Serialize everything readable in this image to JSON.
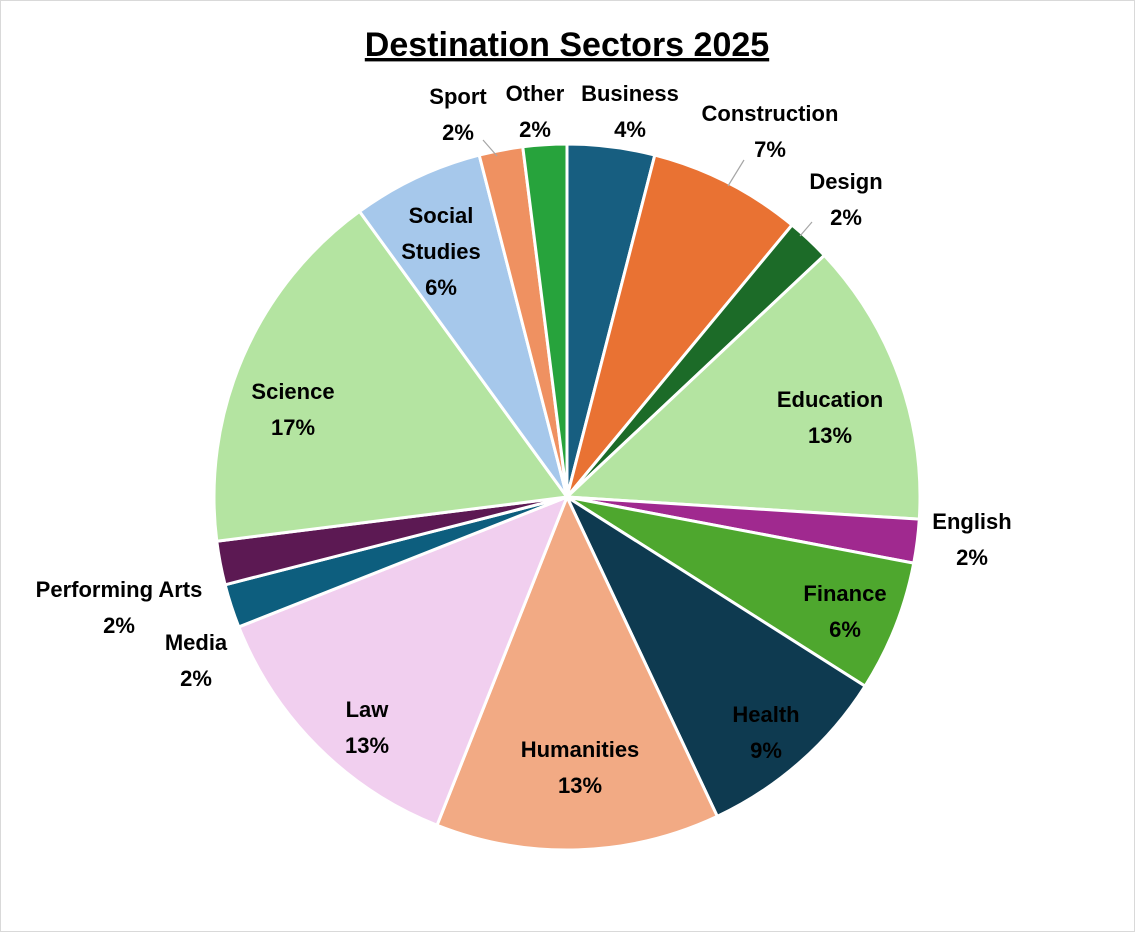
{
  "chart_data": {
    "type": "pie",
    "title": "Destination Sectors 2025",
    "slices": [
      {
        "label": "Business",
        "value": 4,
        "display": "4%",
        "color": "#175e80",
        "text_color": "#000000"
      },
      {
        "label": "Construction",
        "value": 7,
        "display": "7%",
        "color": "#e97233",
        "text_color": "#000000"
      },
      {
        "label": "Design",
        "value": 2,
        "display": "2%",
        "color": "#1c6b28",
        "text_color": "#000000"
      },
      {
        "label": "Education",
        "value": 13,
        "display": "13%",
        "color": "#b4e4a1",
        "text_color": "#000000"
      },
      {
        "label": "English",
        "value": 2,
        "display": "2%",
        "color": "#a0298f",
        "text_color": "#000000"
      },
      {
        "label": "Finance",
        "value": 6,
        "display": "6%",
        "color": "#4ea72e",
        "text_color": "#000000"
      },
      {
        "label": "Health",
        "value": 9,
        "display": "9%",
        "color": "#0e3a50",
        "text_color": "#000000"
      },
      {
        "label": "Humanities",
        "value": 13,
        "display": "13%",
        "color": "#f2aa84",
        "text_color": "#000000"
      },
      {
        "label": "Law",
        "value": 13,
        "display": "13%",
        "color": "#f1cfef",
        "text_color": "#000000"
      },
      {
        "label": "Media",
        "value": 2,
        "display": "2%",
        "color": "#0d5e7e",
        "text_color": "#000000"
      },
      {
        "label": "Performing Arts",
        "value": 2,
        "display": "2%",
        "color": "#5c1953",
        "text_color": "#000000"
      },
      {
        "label": "Science",
        "value": 17,
        "display": "17%",
        "color": "#b4e4a1",
        "text_color": "#000000"
      },
      {
        "label": "Social Studies",
        "value": 6,
        "display": "6%",
        "color": "#a6c8eb",
        "text_color": "#000000"
      },
      {
        "label": "Sport",
        "value": 2,
        "display": "2%",
        "color": "#ef9161",
        "text_color": "#000000"
      },
      {
        "label": "Other",
        "value": 2,
        "display": "2%",
        "color": "#27a33c",
        "text_color": "#000000"
      }
    ]
  }
}
